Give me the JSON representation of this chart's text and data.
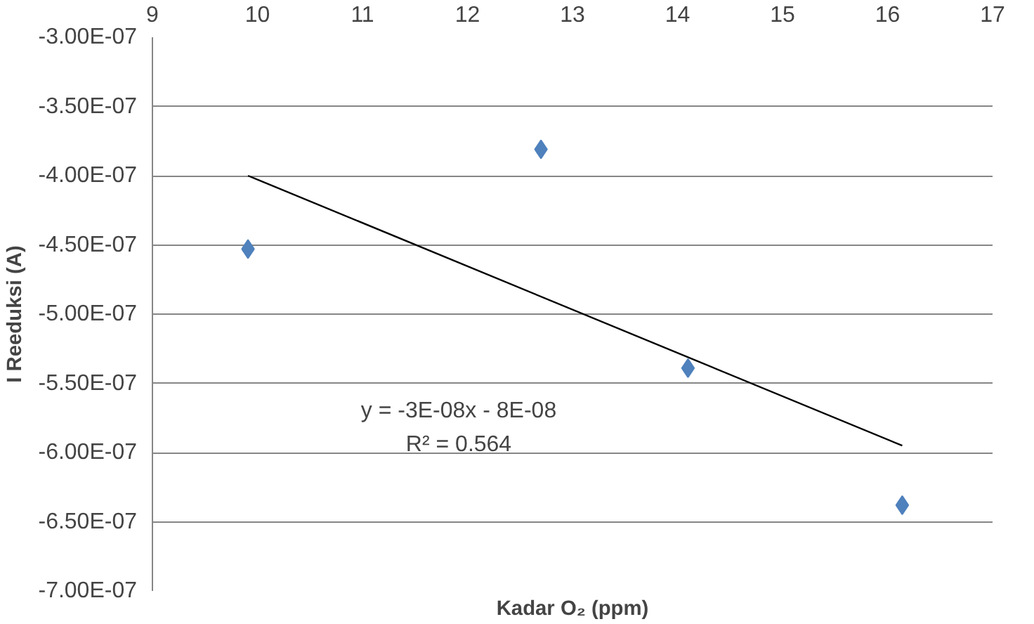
{
  "chart_data": {
    "type": "scatter",
    "xlabel": "Kadar O₂ (ppm)",
    "ylabel": "I Reeduksi (A)",
    "series": [
      {
        "color": "#4f81bd",
        "marker": "diamond",
        "x": [
          9.91,
          12.7,
          14.1,
          16.14
        ],
        "values": [
          -4.53e-07,
          -3.81e-07,
          -5.39e-07,
          -6.38e-07
        ]
      },
      {
        "type": "line",
        "color": "#000000",
        "marker": "none",
        "line_style": "solid",
        "x": [
          9.91,
          16.14
        ],
        "values": [
          -4e-07,
          -5.95e-07
        ]
      }
    ],
    "xlim": [
      9,
      17
    ],
    "xticks": [
      9,
      10,
      11,
      12,
      13,
      14,
      15,
      16,
      17
    ],
    "ylim": [
      -7e-07,
      -3e-07
    ],
    "yticks": [
      {
        "value": -7e-07,
        "label": "-7.00E-07"
      },
      {
        "value": -6.5e-07,
        "label": "-6.50E-07"
      },
      {
        "value": -6e-07,
        "label": "-6.00E-07"
      },
      {
        "value": -5.5e-07,
        "label": "-5.50E-07"
      },
      {
        "value": -5e-07,
        "label": "-5.00E-07"
      },
      {
        "value": -4.5e-07,
        "label": "-4.50E-07"
      },
      {
        "value": -4e-07,
        "label": "-4.00E-07"
      },
      {
        "value": -3.5e-07,
        "label": "-3.50E-07"
      },
      {
        "value": -3e-07,
        "label": "-3.00E-07"
      }
    ],
    "grid": "y",
    "annotations": [
      "y = -3E-08x - 8E-08",
      "R² = 0.564"
    ]
  }
}
